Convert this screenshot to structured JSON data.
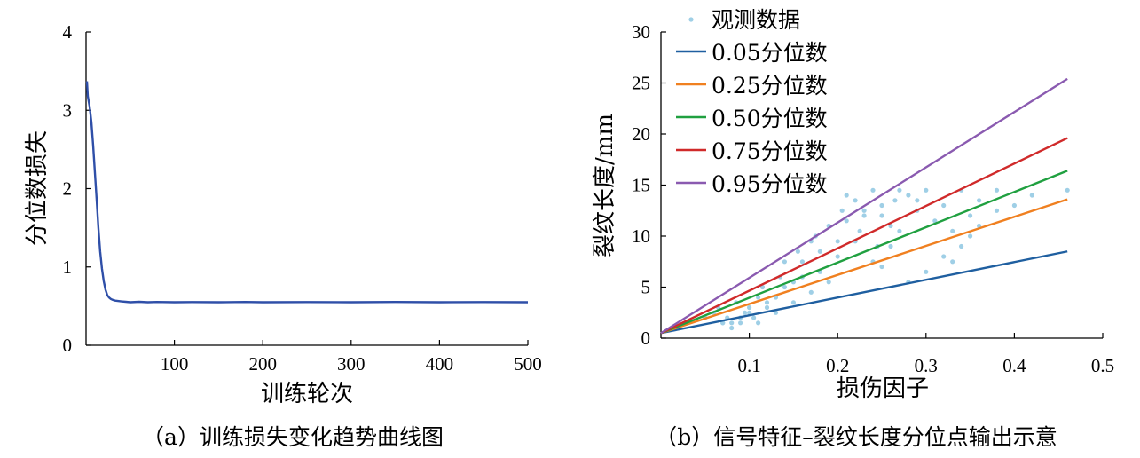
{
  "chart_data": [
    {
      "type": "line",
      "caption": "（a）训练损失变化趋势曲线图",
      "xlabel": "训练轮次",
      "ylabel": "分位数损失",
      "xlim": [
        0,
        500
      ],
      "ylim": [
        0,
        4
      ],
      "xticks": [
        100,
        200,
        300,
        400,
        500
      ],
      "yticks": [
        0,
        1,
        2,
        3,
        4
      ],
      "series": [
        {
          "name": "训练损失",
          "color": "#2f4fa8",
          "x": [
            1,
            2,
            4,
            6,
            8,
            10,
            12,
            14,
            16,
            18,
            20,
            22,
            24,
            26,
            28,
            30,
            33,
            36,
            40,
            45,
            50,
            60,
            70,
            80,
            100,
            120,
            150,
            180,
            200,
            250,
            300,
            350,
            400,
            450,
            500
          ],
          "y": [
            3.37,
            3.18,
            3.05,
            2.85,
            2.55,
            2.2,
            1.85,
            1.5,
            1.2,
            0.98,
            0.82,
            0.71,
            0.64,
            0.61,
            0.59,
            0.58,
            0.57,
            0.565,
            0.56,
            0.555,
            0.55,
            0.555,
            0.55,
            0.553,
            0.55,
            0.552,
            0.55,
            0.553,
            0.55,
            0.552,
            0.55,
            0.553,
            0.55,
            0.552,
            0.55
          ]
        }
      ]
    },
    {
      "type": "scatter",
      "caption": "（b）信号特征–裂纹长度分位点输出示意",
      "xlabel": "损伤因子",
      "ylabel": "裂纹长度/mm",
      "xlim": [
        0,
        0.5
      ],
      "ylim": [
        0,
        30
      ],
      "xticks": [
        0.1,
        0.2,
        0.3,
        0.4,
        0.5
      ],
      "yticks": [
        0,
        5,
        10,
        15,
        20,
        25,
        30
      ],
      "scatter": {
        "name": "观测数据",
        "color": "#9fcfe6",
        "x": [
          0.05,
          0.06,
          0.065,
          0.07,
          0.075,
          0.08,
          0.085,
          0.09,
          0.095,
          0.1,
          0.105,
          0.11,
          0.115,
          0.12,
          0.13,
          0.135,
          0.14,
          0.15,
          0.155,
          0.16,
          0.17,
          0.175,
          0.18,
          0.19,
          0.2,
          0.205,
          0.21,
          0.22,
          0.225,
          0.23,
          0.24,
          0.245,
          0.25,
          0.26,
          0.265,
          0.27,
          0.28,
          0.29,
          0.3,
          0.31,
          0.32,
          0.33,
          0.34,
          0.35,
          0.36,
          0.38,
          0.4,
          0.42,
          0.46,
          0.07,
          0.09,
          0.1,
          0.12,
          0.14,
          0.16,
          0.18,
          0.2,
          0.22,
          0.24,
          0.26,
          0.28,
          0.3,
          0.32,
          0.34,
          0.36,
          0.38,
          0.21,
          0.23,
          0.25,
          0.27,
          0.29,
          0.15,
          0.17,
          0.19,
          0.11,
          0.13,
          0.08,
          0.25,
          0.33,
          0.35
        ],
        "y": [
          2,
          2.5,
          3,
          1.5,
          2,
          1.5,
          3.5,
          2,
          2.5,
          2.5,
          2,
          4,
          5,
          3.5,
          4,
          6,
          7.5,
          5.5,
          8.5,
          7.5,
          9.5,
          10,
          8.5,
          11,
          9.5,
          12.5,
          11.5,
          13.5,
          10.5,
          12.5,
          14.5,
          9,
          12,
          11,
          13.5,
          10.5,
          14,
          12.5,
          14.5,
          11.5,
          13,
          10.5,
          14.5,
          12,
          13.5,
          12.5,
          13,
          14,
          14.5,
          1.5,
          1.5,
          3,
          3,
          5,
          6,
          6.5,
          8,
          9.5,
          7.5,
          9,
          5.5,
          6.5,
          8,
          9,
          11,
          14.5,
          14,
          12,
          13,
          14.5,
          13.5,
          3.5,
          4.5,
          5.5,
          1.5,
          2.5,
          1,
          7,
          7.5,
          10
        ]
      },
      "lines": [
        {
          "name": "0.05分位数",
          "color": "#1f5fa0",
          "x": [
            0,
            0.46
          ],
          "y": [
            0.5,
            8.5
          ]
        },
        {
          "name": "0.25分位数",
          "color": "#f08020",
          "x": [
            0,
            0.46
          ],
          "y": [
            0.5,
            13.6
          ]
        },
        {
          "name": "0.50分位数",
          "color": "#20a040",
          "x": [
            0,
            0.46
          ],
          "y": [
            0.5,
            16.4
          ]
        },
        {
          "name": "0.75分位数",
          "color": "#d02a2a",
          "x": [
            0,
            0.46
          ],
          "y": [
            0.5,
            19.6
          ]
        },
        {
          "name": "0.95分位数",
          "color": "#8a5ab0",
          "x": [
            0,
            0.46
          ],
          "y": [
            0.5,
            25.4
          ]
        }
      ],
      "legend_position": "top-left"
    }
  ]
}
